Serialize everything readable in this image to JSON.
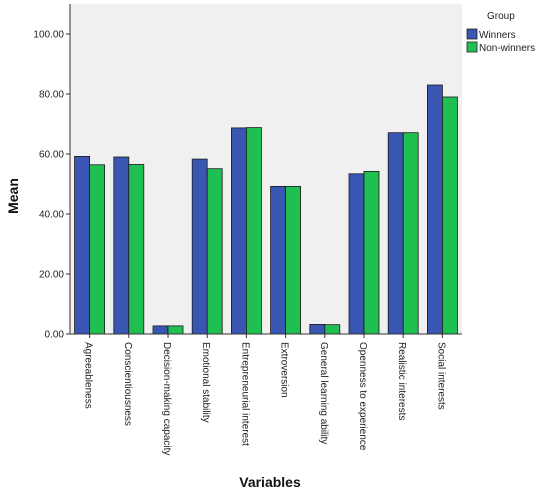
{
  "chart_data": {
    "type": "bar",
    "title": "",
    "xlabel": "Variables",
    "ylabel": "Mean",
    "ylim": [
      0,
      110
    ],
    "yticks": [
      0,
      20,
      40,
      60,
      80,
      100
    ],
    "ytick_labels": [
      "0.00",
      "20.00",
      "40.00",
      "60.00",
      "80.00",
      "100.00"
    ],
    "grid": false,
    "legend_title": "Group",
    "legend_position": "top-right",
    "categories": [
      "Agreeableness",
      "Conscientiousness",
      "Decision-making capacity",
      "Emotional stability",
      "Entrepreneurial interest",
      "Extroversion",
      "General learning ability",
      "Openness to experience",
      "Realistic interests",
      "Social interests"
    ],
    "series": [
      {
        "name": "Winners",
        "color": "#3a56b3",
        "values": [
          59.2,
          59.0,
          2.7,
          58.3,
          68.7,
          49.2,
          3.2,
          53.4,
          67.1,
          83.0
        ]
      },
      {
        "name": "Non-winners",
        "color": "#1fbf52",
        "values": [
          56.4,
          56.5,
          2.7,
          55.1,
          68.8,
          49.2,
          3.1,
          54.2,
          67.1,
          79.0
        ]
      }
    ],
    "plot_background": "#f0f0f0"
  }
}
